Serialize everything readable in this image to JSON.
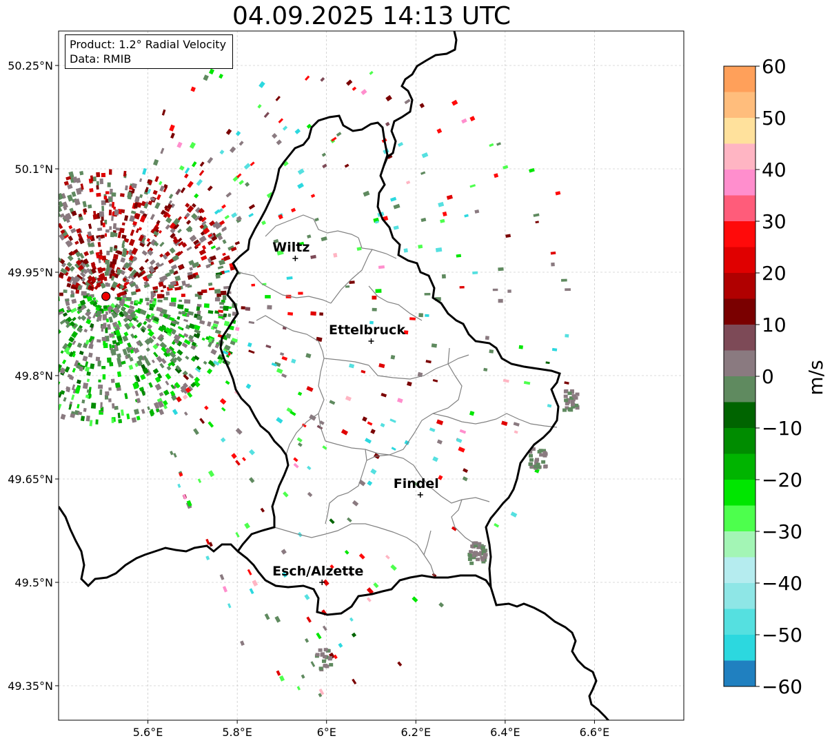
{
  "title": "04.09.2025 14:13 UTC",
  "info": {
    "product_line": "Product: 1.2° Radial Velocity",
    "data_line": "Data: RMIB"
  },
  "map": {
    "lon_range": [
      5.4,
      6.8
    ],
    "lat_range": [
      49.3,
      50.3
    ],
    "lon_ticks": [
      {
        "value": 5.6,
        "label": "5.6°E"
      },
      {
        "value": 5.8,
        "label": "5.8°E"
      },
      {
        "value": 6.0,
        "label": "6°E"
      },
      {
        "value": 6.2,
        "label": "6.2°E"
      },
      {
        "value": 6.4,
        "label": "6.4°E"
      },
      {
        "value": 6.6,
        "label": "6.6°E"
      }
    ],
    "lat_ticks": [
      {
        "value": 50.25,
        "label": "50.25°N"
      },
      {
        "value": 50.1,
        "label": "50.1°N"
      },
      {
        "value": 49.95,
        "label": "49.95°N"
      },
      {
        "value": 49.8,
        "label": "49.8°N"
      },
      {
        "value": 49.65,
        "label": "49.65°N"
      },
      {
        "value": 49.5,
        "label": "49.5°N"
      },
      {
        "value": 49.35,
        "label": "49.35°N"
      }
    ],
    "grid": true,
    "cities": [
      {
        "name": "Wiltz",
        "lon": 5.93,
        "lat": 49.97
      },
      {
        "name": "Ettelbruck",
        "lon": 6.1,
        "lat": 49.85
      },
      {
        "name": "Findel",
        "lon": 6.21,
        "lat": 49.627
      },
      {
        "name": "Esch/Alzette",
        "lon": 5.99,
        "lat": 49.5
      }
    ],
    "radar_site": {
      "lon": 5.506,
      "lat": 49.915
    },
    "colors": {
      "border": "#000000",
      "cantons": "#808080",
      "grid": "#b8b8b8",
      "radar_marker": "#ee0000"
    }
  },
  "colorbar": {
    "label": "m/s",
    "range": [
      -60,
      60
    ],
    "ticks": [
      {
        "value": 60,
        "label": "60"
      },
      {
        "value": 50,
        "label": "50"
      },
      {
        "value": 40,
        "label": "40"
      },
      {
        "value": 30,
        "label": "30"
      },
      {
        "value": 20,
        "label": "20"
      },
      {
        "value": 10,
        "label": "10"
      },
      {
        "value": 0,
        "label": "0"
      },
      {
        "value": -10,
        "label": "−10"
      },
      {
        "value": -20,
        "label": "−20"
      },
      {
        "value": -30,
        "label": "−30"
      },
      {
        "value": -40,
        "label": "−40"
      },
      {
        "value": -50,
        "label": "−50"
      },
      {
        "value": -60,
        "label": "−60"
      }
    ],
    "bands": [
      {
        "from": 55,
        "to": 60,
        "color": "#ffa05a"
      },
      {
        "from": 50,
        "to": 55,
        "color": "#ffbd7c"
      },
      {
        "from": 45,
        "to": 50,
        "color": "#ffe19c"
      },
      {
        "from": 40,
        "to": 45,
        "color": "#ffb5c3"
      },
      {
        "from": 35,
        "to": 40,
        "color": "#ff8ecd"
      },
      {
        "from": 30,
        "to": 35,
        "color": "#ff5c7a"
      },
      {
        "from": 25,
        "to": 30,
        "color": "#ff0a0a"
      },
      {
        "from": 20,
        "to": 25,
        "color": "#e00000"
      },
      {
        "from": 15,
        "to": 20,
        "color": "#b00000"
      },
      {
        "from": 10,
        "to": 15,
        "color": "#7a0000"
      },
      {
        "from": 5,
        "to": 10,
        "color": "#7d4a57"
      },
      {
        "from": 0,
        "to": 5,
        "color": "#8a7a80"
      },
      {
        "from": -5,
        "to": 0,
        "color": "#5f8a5f"
      },
      {
        "from": -10,
        "to": -5,
        "color": "#006400"
      },
      {
        "from": -15,
        "to": -10,
        "color": "#008c00"
      },
      {
        "from": -20,
        "to": -15,
        "color": "#00b400"
      },
      {
        "from": -25,
        "to": -20,
        "color": "#00e600"
      },
      {
        "from": -30,
        "to": -25,
        "color": "#4dff4d"
      },
      {
        "from": -35,
        "to": -30,
        "color": "#a3f5b5"
      },
      {
        "from": -40,
        "to": -35,
        "color": "#b5ecef"
      },
      {
        "from": -45,
        "to": -40,
        "color": "#8ee6e6"
      },
      {
        "from": -50,
        "to": -45,
        "color": "#55e0e0"
      },
      {
        "from": -55,
        "to": -50,
        "color": "#2cd8df"
      },
      {
        "from": -60,
        "to": -55,
        "color": "#2080c0"
      }
    ]
  }
}
